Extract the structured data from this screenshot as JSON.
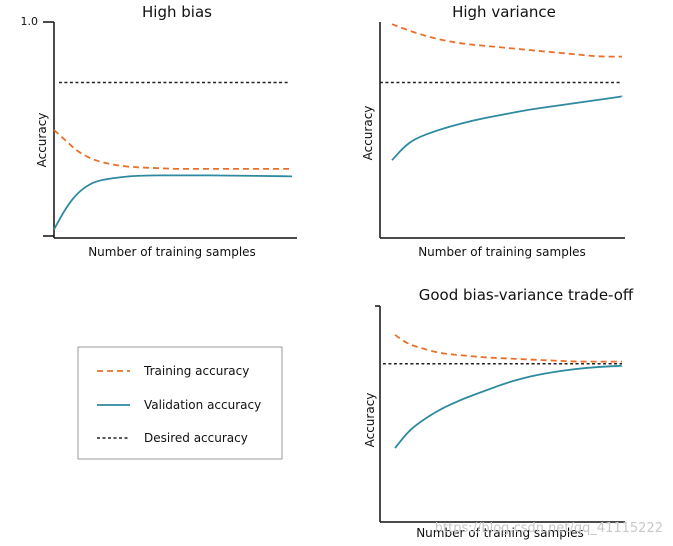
{
  "colors": {
    "training": "#e8702a",
    "validation": "#2e8aa0",
    "desired": "#222222",
    "axis": "#111111"
  },
  "legend": {
    "items": [
      {
        "key": "training",
        "label": "Training accuracy",
        "style": "dashed"
      },
      {
        "key": "validation",
        "label": "Validation accuracy",
        "style": "solid"
      },
      {
        "key": "desired",
        "label": "Desired accuracy",
        "style": "dashed"
      }
    ]
  },
  "watermark": "https://blog.csdn.net/qq_41115222",
  "chart_data": [
    {
      "id": "high-bias",
      "type": "line",
      "title": "High bias",
      "xlabel": "Number of training samples",
      "ylabel": "Accuracy",
      "ylim": [
        0,
        1.0
      ],
      "y_tick_label": "1.0",
      "series": [
        {
          "name": "Training accuracy",
          "key": "training",
          "style": "dashed",
          "x": [
            0.0,
            0.05,
            0.1,
            0.15,
            0.2,
            0.3,
            0.4,
            0.5,
            0.6,
            0.7,
            0.8,
            0.9,
            1.0
          ],
          "y": [
            0.5,
            0.45,
            0.4,
            0.37,
            0.35,
            0.33,
            0.325,
            0.32,
            0.32,
            0.32,
            0.32,
            0.32,
            0.32
          ]
        },
        {
          "name": "Validation accuracy",
          "key": "validation",
          "style": "solid",
          "x": [
            0.0,
            0.05,
            0.1,
            0.15,
            0.2,
            0.3,
            0.4,
            0.5,
            0.6,
            0.7,
            0.8,
            0.9,
            1.0
          ],
          "y": [
            0.04,
            0.14,
            0.21,
            0.25,
            0.27,
            0.285,
            0.29,
            0.29,
            0.29,
            0.29,
            0.288,
            0.287,
            0.285
          ]
        },
        {
          "name": "Desired accuracy",
          "key": "desired",
          "style": "dashed",
          "x": [
            0.0,
            1.0
          ],
          "y": [
            0.72,
            0.72
          ]
        }
      ]
    },
    {
      "id": "high-variance",
      "type": "line",
      "title": "High variance",
      "xlabel": "Number of training samples",
      "ylabel": "Accuracy",
      "ylim": [
        0,
        1.0
      ],
      "series": [
        {
          "name": "Training accuracy",
          "key": "training",
          "style": "dashed",
          "x": [
            0.0,
            0.1,
            0.2,
            0.3,
            0.4,
            0.5,
            0.6,
            0.7,
            0.8,
            0.9,
            1.0
          ],
          "y": [
            0.99,
            0.95,
            0.92,
            0.9,
            0.89,
            0.88,
            0.87,
            0.86,
            0.85,
            0.84,
            0.84
          ]
        },
        {
          "name": "Validation accuracy",
          "key": "validation",
          "style": "solid",
          "x": [
            0.0,
            0.05,
            0.1,
            0.2,
            0.3,
            0.4,
            0.5,
            0.6,
            0.7,
            0.8,
            0.9,
            1.0
          ],
          "y": [
            0.36,
            0.42,
            0.46,
            0.5,
            0.53,
            0.555,
            0.575,
            0.595,
            0.61,
            0.625,
            0.64,
            0.655
          ]
        },
        {
          "name": "Desired accuracy",
          "key": "desired",
          "style": "dashed",
          "x": [
            0.0,
            1.0
          ],
          "y": [
            0.72,
            0.72
          ]
        }
      ]
    },
    {
      "id": "good-tradeoff",
      "type": "line",
      "title": "Good bias-variance trade-off",
      "xlabel": "Number of training samples",
      "ylabel": "Accuracy",
      "ylim": [
        0,
        1.0
      ],
      "series": [
        {
          "name": "Training accuracy",
          "key": "training",
          "style": "dashed",
          "x": [
            0.0,
            0.05,
            0.1,
            0.2,
            0.3,
            0.4,
            0.5,
            0.6,
            0.7,
            0.8,
            0.9,
            1.0
          ],
          "y": [
            0.86,
            0.82,
            0.8,
            0.77,
            0.76,
            0.75,
            0.745,
            0.74,
            0.735,
            0.73,
            0.73,
            0.73
          ]
        },
        {
          "name": "Validation accuracy",
          "key": "validation",
          "style": "solid",
          "x": [
            0.0,
            0.05,
            0.1,
            0.2,
            0.3,
            0.4,
            0.5,
            0.6,
            0.7,
            0.8,
            0.9,
            1.0
          ],
          "y": [
            0.31,
            0.38,
            0.43,
            0.5,
            0.55,
            0.59,
            0.63,
            0.66,
            0.68,
            0.695,
            0.705,
            0.71
          ]
        },
        {
          "name": "Desired accuracy",
          "key": "desired",
          "style": "dashed",
          "x": [
            0.0,
            1.0
          ],
          "y": [
            0.72,
            0.72
          ]
        }
      ]
    }
  ]
}
